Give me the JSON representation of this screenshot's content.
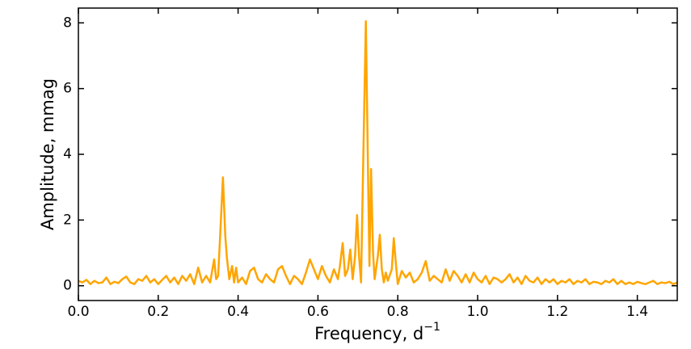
{
  "chart_data": {
    "type": "line",
    "xlabel": "Frequency, d",
    "xlabel_superscript": "−1",
    "ylabel": "Amplitude, mmag",
    "xlim": [
      0,
      1.5
    ],
    "ylim": [
      -0.45,
      8.45
    ],
    "xticks": [
      {
        "value": 0,
        "label": "0.0"
      },
      0.2,
      0.4,
      0.6,
      0.8,
      {
        "value": 1,
        "label": "1.0"
      },
      1.2,
      1.4
    ],
    "yticks": [
      0,
      2,
      4,
      6,
      8
    ],
    "series": [
      {
        "color": "#FFA500",
        "x": [
          0,
          0.01,
          0.02,
          0.03,
          0.04,
          0.05,
          0.06,
          0.07,
          0.08,
          0.09,
          0.1,
          0.11,
          0.12,
          0.13,
          0.14,
          0.15,
          0.16,
          0.17,
          0.18,
          0.19,
          0.2,
          0.21,
          0.22,
          0.23,
          0.24,
          0.25,
          0.26,
          0.27,
          0.28,
          0.29,
          0.3,
          0.31,
          0.32,
          0.33,
          0.34,
          0.345,
          0.35,
          0.355,
          0.362,
          0.368,
          0.372,
          0.378,
          0.385,
          0.39,
          0.395,
          0.4,
          0.41,
          0.42,
          0.43,
          0.44,
          0.45,
          0.46,
          0.47,
          0.48,
          0.49,
          0.5,
          0.51,
          0.52,
          0.53,
          0.54,
          0.55,
          0.56,
          0.57,
          0.58,
          0.59,
          0.6,
          0.61,
          0.62,
          0.63,
          0.64,
          0.65,
          0.655,
          0.662,
          0.668,
          0.675,
          0.681,
          0.687,
          0.693,
          0.698,
          0.703,
          0.708,
          0.713,
          0.72,
          0.726,
          0.729,
          0.733,
          0.738,
          0.742,
          0.75,
          0.755,
          0.76,
          0.765,
          0.77,
          0.775,
          0.785,
          0.79,
          0.795,
          0.8,
          0.81,
          0.82,
          0.83,
          0.84,
          0.85,
          0.86,
          0.87,
          0.88,
          0.89,
          0.9,
          0.91,
          0.92,
          0.93,
          0.94,
          0.95,
          0.96,
          0.97,
          0.98,
          0.99,
          1.0,
          1.01,
          1.02,
          1.03,
          1.04,
          1.05,
          1.06,
          1.07,
          1.08,
          1.09,
          1.1,
          1.11,
          1.12,
          1.13,
          1.14,
          1.15,
          1.16,
          1.17,
          1.18,
          1.19,
          1.2,
          1.21,
          1.22,
          1.23,
          1.24,
          1.25,
          1.26,
          1.27,
          1.28,
          1.29,
          1.3,
          1.31,
          1.32,
          1.33,
          1.34,
          1.35,
          1.36,
          1.37,
          1.38,
          1.39,
          1.4,
          1.41,
          1.42,
          1.43,
          1.44,
          1.45,
          1.46,
          1.47,
          1.48,
          1.49,
          1.5
        ],
        "values": [
          0.15,
          0.1,
          0.18,
          0.05,
          0.15,
          0.08,
          0.1,
          0.25,
          0.05,
          0.12,
          0.08,
          0.2,
          0.28,
          0.1,
          0.05,
          0.2,
          0.15,
          0.3,
          0.1,
          0.2,
          0.05,
          0.18,
          0.3,
          0.1,
          0.25,
          0.05,
          0.3,
          0.15,
          0.35,
          0.05,
          0.55,
          0.1,
          0.3,
          0.1,
          0.8,
          0.2,
          0.3,
          1.5,
          3.3,
          1.5,
          0.85,
          0.2,
          0.6,
          0.1,
          0.55,
          0.1,
          0.25,
          0.05,
          0.45,
          0.55,
          0.2,
          0.1,
          0.35,
          0.2,
          0.1,
          0.5,
          0.6,
          0.3,
          0.05,
          0.3,
          0.2,
          0.05,
          0.4,
          0.8,
          0.5,
          0.2,
          0.6,
          0.3,
          0.1,
          0.5,
          0.2,
          0.6,
          1.3,
          0.3,
          0.5,
          1.1,
          0.2,
          0.9,
          2.15,
          0.9,
          0.1,
          3.5,
          8.05,
          3.0,
          0.6,
          3.55,
          1.0,
          0.2,
          0.9,
          1.55,
          0.5,
          0.1,
          0.4,
          0.15,
          0.5,
          1.45,
          0.7,
          0.05,
          0.45,
          0.25,
          0.4,
          0.1,
          0.2,
          0.4,
          0.75,
          0.15,
          0.3,
          0.2,
          0.1,
          0.5,
          0.15,
          0.45,
          0.3,
          0.1,
          0.35,
          0.1,
          0.4,
          0.2,
          0.1,
          0.3,
          0.05,
          0.25,
          0.2,
          0.1,
          0.2,
          0.35,
          0.1,
          0.25,
          0.05,
          0.3,
          0.15,
          0.1,
          0.25,
          0.05,
          0.2,
          0.1,
          0.2,
          0.05,
          0.15,
          0.1,
          0.2,
          0.05,
          0.15,
          0.1,
          0.2,
          0.05,
          0.12,
          0.1,
          0.05,
          0.15,
          0.1,
          0.2,
          0.05,
          0.15,
          0.05,
          0.1,
          0.05,
          0.12,
          0.08,
          0.05,
          0.1,
          0.15,
          0.05,
          0.1,
          0.08,
          0.12,
          0.05,
          0.1
        ]
      }
    ]
  }
}
